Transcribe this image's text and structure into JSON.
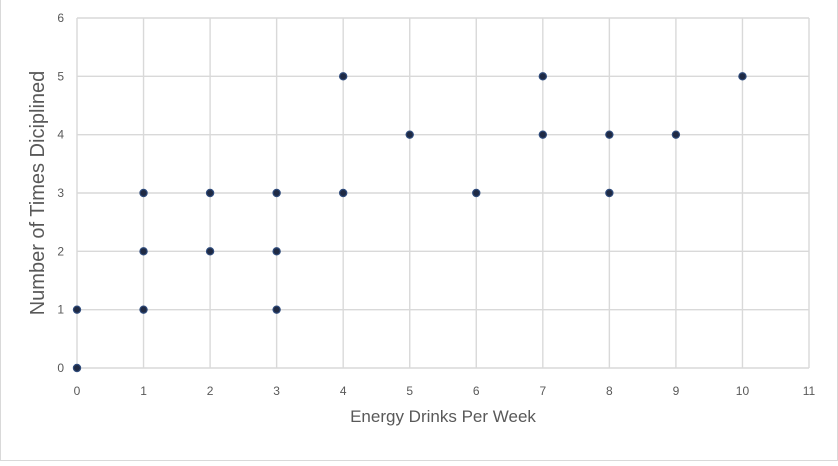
{
  "chart_data": {
    "type": "scatter",
    "title": "",
    "xlabel": "Energy Drinks Per Week",
    "ylabel": "Number of Times Diciplined",
    "xlim": [
      0,
      11
    ],
    "ylim": [
      0,
      6
    ],
    "x_ticks": [
      "0",
      "1",
      "2",
      "3",
      "4",
      "5",
      "6",
      "7",
      "8",
      "9",
      "10",
      "11"
    ],
    "y_ticks": [
      "0",
      "1",
      "2",
      "3",
      "4",
      "5",
      "6"
    ],
    "grid": true,
    "legend": "none",
    "colors": {
      "marker_fill": "#1f2a44",
      "marker_edge": "#2e4a7a",
      "grid": "#d9d9d9",
      "text": "#595959"
    },
    "points": [
      {
        "x": 0,
        "y": 0
      },
      {
        "x": 0,
        "y": 1
      },
      {
        "x": 1,
        "y": 1
      },
      {
        "x": 1,
        "y": 2
      },
      {
        "x": 1,
        "y": 3
      },
      {
        "x": 2,
        "y": 2
      },
      {
        "x": 2,
        "y": 3
      },
      {
        "x": 3,
        "y": 1
      },
      {
        "x": 3,
        "y": 2
      },
      {
        "x": 3,
        "y": 3
      },
      {
        "x": 4,
        "y": 3
      },
      {
        "x": 4,
        "y": 5
      },
      {
        "x": 5,
        "y": 4
      },
      {
        "x": 6,
        "y": 3
      },
      {
        "x": 7,
        "y": 4
      },
      {
        "x": 7,
        "y": 5
      },
      {
        "x": 8,
        "y": 3
      },
      {
        "x": 8,
        "y": 4
      },
      {
        "x": 9,
        "y": 4
      },
      {
        "x": 10,
        "y": 5
      }
    ]
  }
}
